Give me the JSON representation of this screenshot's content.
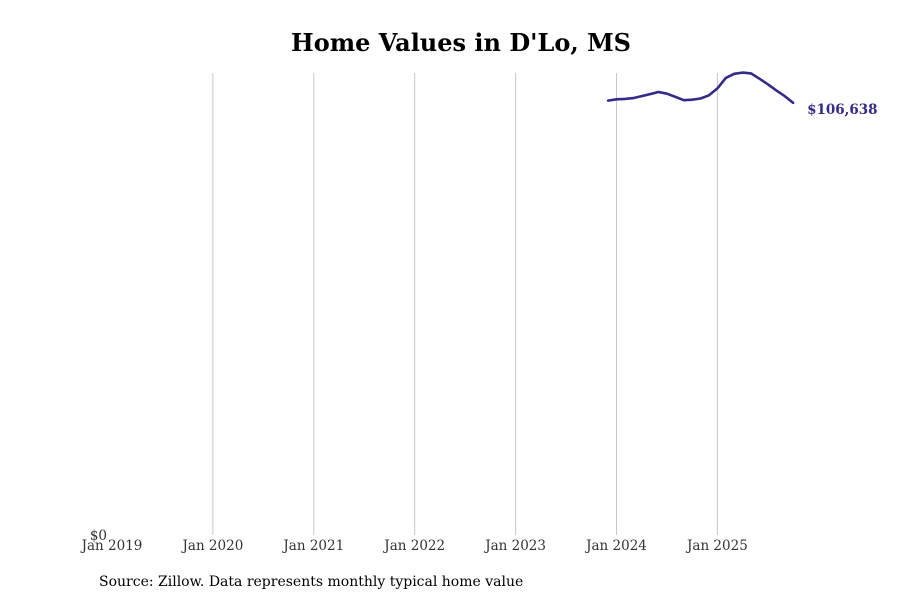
{
  "chart_data": {
    "type": "line",
    "title": "Home Values in D'Lo, MS",
    "xlabel": "",
    "ylabel": "",
    "x_ticks": [
      "Jan 2019",
      "Jan 2020",
      "Jan 2021",
      "Jan 2022",
      "Jan 2023",
      "Jan 2024",
      "Jan 2025"
    ],
    "y_ticks": [
      "$0"
    ],
    "xlim": [
      "2019-01",
      "2025-12"
    ],
    "ylim": [
      0,
      114000
    ],
    "grid": "vertical",
    "legend": "none",
    "series": [
      {
        "color": "#332b87",
        "x": [
          "2023-12",
          "2024-01",
          "2024-02",
          "2024-03",
          "2024-04",
          "2024-05",
          "2024-06",
          "2024-07",
          "2024-08",
          "2024-09",
          "2024-10",
          "2024-11",
          "2024-12",
          "2025-01",
          "2025-02",
          "2025-03",
          "2025-04",
          "2025-05",
          "2025-06",
          "2025-07",
          "2025-08",
          "2025-09",
          "2025-10"
        ],
        "values": [
          107200,
          107500,
          107600,
          107800,
          108300,
          108800,
          109300,
          108900,
          108100,
          107300,
          107400,
          107700,
          108500,
          110200,
          112800,
          113800,
          114100,
          113900,
          112600,
          111200,
          109700,
          108300,
          106638
        ]
      }
    ],
    "end_label": "$106,638"
  },
  "source_note": "Source: Zillow. Data represents monthly typical home value"
}
